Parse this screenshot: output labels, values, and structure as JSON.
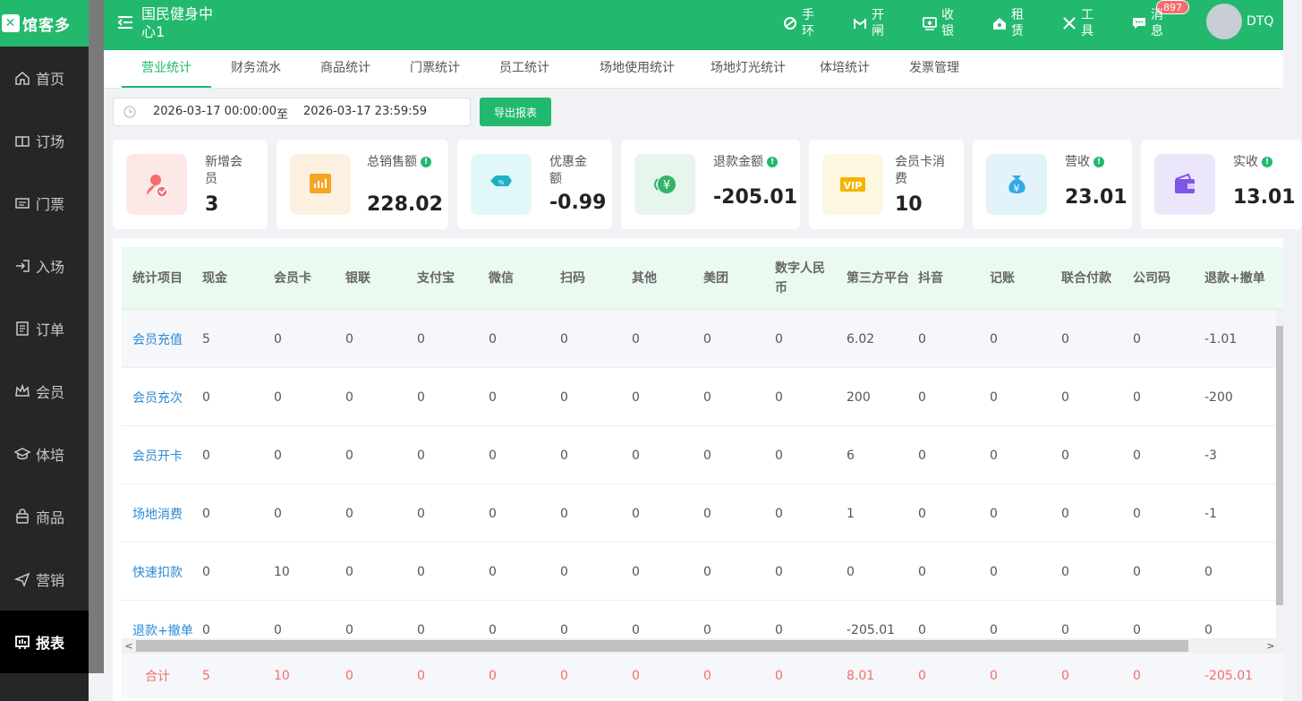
{
  "app": {
    "logo_text": "馆客多",
    "venue": "国民健身中心1",
    "username": "DTQ"
  },
  "sidebar": {
    "items": [
      {
        "label": "首页",
        "icon": "home-icon"
      },
      {
        "label": "订场",
        "icon": "court-icon"
      },
      {
        "label": "门票",
        "icon": "ticket-icon"
      },
      {
        "label": "入场",
        "icon": "enter-icon"
      },
      {
        "label": "订单",
        "icon": "order-icon"
      },
      {
        "label": "会员",
        "icon": "crown-icon"
      },
      {
        "label": "体培",
        "icon": "graduation-icon"
      },
      {
        "label": "商品",
        "icon": "bag-icon"
      },
      {
        "label": "营销",
        "icon": "send-icon"
      },
      {
        "label": "报表",
        "icon": "report-icon"
      }
    ],
    "active": "报表"
  },
  "header": {
    "tools": [
      {
        "label": "手环",
        "icon": "wristband-icon"
      },
      {
        "label": "开闸",
        "icon": "gate-icon"
      },
      {
        "label": "收银",
        "icon": "cashier-icon"
      },
      {
        "label": "租赁",
        "icon": "rent-icon"
      },
      {
        "label": "工具",
        "icon": "tools-icon"
      },
      {
        "label": "消息",
        "icon": "message-icon"
      }
    ],
    "message_badge": "897"
  },
  "tabs": [
    "营业统计",
    "财务流水",
    "商品统计",
    "门票统计",
    "员工统计",
    "场地使用统计",
    "场地灯光统计",
    "体培统计",
    "发票管理"
  ],
  "active_tab": "营业统计",
  "filter": {
    "start": "2026-03-17 00:00:00",
    "separator": "至",
    "end": "2026-03-17 23:59:59",
    "export_label": "导出报表"
  },
  "stats": [
    {
      "label": "新增会员",
      "value": "3",
      "icon": "add-member-icon",
      "color": "#f56c6c"
    },
    {
      "label": "总销售额",
      "value": "228.02",
      "icon": "sales-chart-icon",
      "color": "#f5a623",
      "info": true
    },
    {
      "label": "优惠金额",
      "value": "-0.99",
      "icon": "coupon-icon",
      "color": "#1bb1c4"
    },
    {
      "label": "退款金额",
      "value": "-205.01",
      "icon": "refund-icon",
      "color": "#34b36a",
      "info": true
    },
    {
      "label": "会员卡消费",
      "value": "10",
      "icon": "vip-icon",
      "color": "#f5b400"
    },
    {
      "label": "营收",
      "value": "23.01",
      "icon": "money-bag-icon",
      "color": "#35a9e8",
      "info": true
    },
    {
      "label": "实收",
      "value": "13.01",
      "icon": "wallet-icon",
      "color": "#7d55e8",
      "info": true
    }
  ],
  "table": {
    "columns": [
      "统计项目",
      "现金",
      "会员卡",
      "银联",
      "支付宝",
      "微信",
      "扫码",
      "其他",
      "美团",
      "数字人民币",
      "第三方平台",
      "抖音",
      "记账",
      "联合付款",
      "公司码",
      "退款+撤单"
    ],
    "rows": [
      [
        "会员充值",
        "5",
        "0",
        "0",
        "0",
        "0",
        "0",
        "0",
        "0",
        "0",
        "6.02",
        "0",
        "0",
        "0",
        "0",
        "-1.01"
      ],
      [
        "会员充次",
        "0",
        "0",
        "0",
        "0",
        "0",
        "0",
        "0",
        "0",
        "0",
        "200",
        "0",
        "0",
        "0",
        "0",
        "-200"
      ],
      [
        "会员开卡",
        "0",
        "0",
        "0",
        "0",
        "0",
        "0",
        "0",
        "0",
        "0",
        "6",
        "0",
        "0",
        "0",
        "0",
        "-3"
      ],
      [
        "场地消费",
        "0",
        "0",
        "0",
        "0",
        "0",
        "0",
        "0",
        "0",
        "0",
        "1",
        "0",
        "0",
        "0",
        "0",
        "-1"
      ],
      [
        "快速扣款",
        "0",
        "10",
        "0",
        "0",
        "0",
        "0",
        "0",
        "0",
        "0",
        "0",
        "0",
        "0",
        "0",
        "0",
        "0"
      ],
      [
        "退款+撤单",
        "0",
        "0",
        "0",
        "0",
        "0",
        "0",
        "0",
        "0",
        "0",
        "-205.01",
        "0",
        "0",
        "0",
        "0",
        "0"
      ]
    ],
    "total": [
      "合计",
      "5",
      "10",
      "0",
      "0",
      "0",
      "0",
      "0",
      "0",
      "0",
      "8.01",
      "0",
      "0",
      "0",
      "0",
      "-205.01"
    ]
  }
}
